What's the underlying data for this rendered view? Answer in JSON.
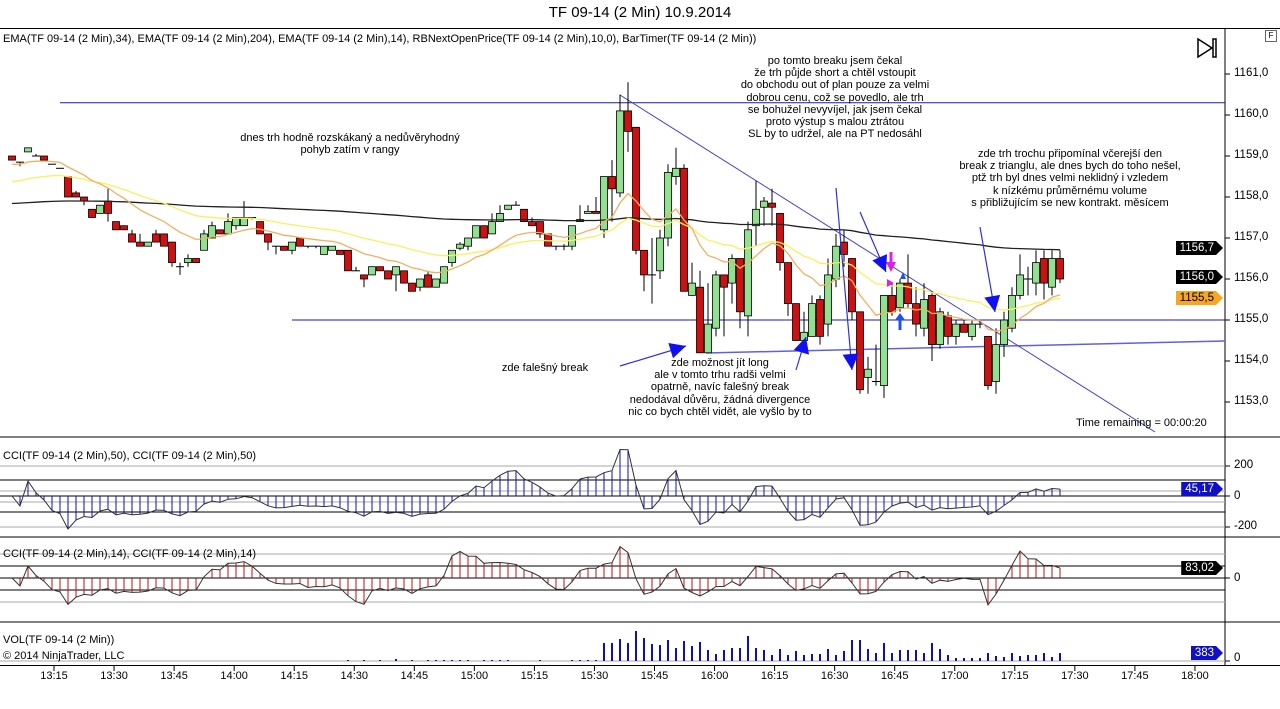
{
  "window": {
    "title": "TF 09-14 (2 Min)  10.9.2014",
    "f_button": "F"
  },
  "main_panel": {
    "indicators_label": "EMA(TF 09-14 (2 Min),34), EMA(TF 09-14 (2 Min),204), EMA(TF 09-14 (2 Min),14), RBNextOpenPrice(TF 09-14 (2 Min),10,0), BarTimer(TF 09-14 (2 Min))",
    "time_remaining": "Time remaining = 00:00:20",
    "price_badges": [
      {
        "label": "1156,7",
        "color": "#000000"
      },
      {
        "label": "1156,0",
        "color": "#000000"
      },
      {
        "label": "1155,5",
        "color": "#f5a623"
      }
    ]
  },
  "annotations": {
    "note1": "dnes trh hodně rozskákaný a nedůvěryhodný\npohyb zatím v rangy",
    "note2": "po tomto breaku jsem čekal\nže trh půjde short a chtěl vstoupit\ndo obchodu out of plan pouze za velmi\ndobrou cenu, což se povedlo, ale trh\nse bohužel nevyvíjel, jak jsem čekal\nproto výstup s malou ztrátou\nSL by to udržel, ale na PT nedosáhl",
    "note3": "zde trh trochu připomínal včerejší den\nbreak z trianglu, ale dnes bych do toho nešel,\nptž trh byl dnes velmi neklidný i vzledem\nk nízkému průměrnému volume\ns přibližujícím se new kontrakt. měsícem",
    "note4": "zde falešný break",
    "note5": "zde možnost jít long\nale v tomto trhu radši velmi\nopatrně, navíc falešný break\nnedodával důvěru, žádná divergence\nnic co bych chtěl vidět, ale vyšlo by to"
  },
  "cci50_panel": {
    "label": "CCI(TF 09-14 (2 Min),50), CCI(TF 09-14 (2 Min),50)",
    "badge": "45,17",
    "axis": [
      "200",
      "0",
      "-200"
    ]
  },
  "cci14_panel": {
    "label": "CCI(TF 09-14 (2 Min),14), CCI(TF 09-14 (2 Min),14)",
    "badge": "83,02",
    "axis": [
      "0"
    ]
  },
  "volume_panel": {
    "label": "VOL(TF 09-14 (2 Min))",
    "copyright": "© 2014 NinjaTrader, LLC",
    "badge": "383",
    "axis": [
      "0"
    ]
  },
  "chart_data": {
    "type": "candlestick",
    "title": "TF 09-14 (2 Min)  10.9.2014",
    "bar_interval_min": 2,
    "ylim": [
      1152.5,
      1161.6
    ],
    "y_ticks": [
      "1161,0",
      "1160,0",
      "1159,0",
      "1158,0",
      "1157,0",
      "1156,0",
      "1155,0",
      "1154,0",
      "1153,0"
    ],
    "x_ticks": [
      "13:15",
      "13:30",
      "13:45",
      "14:00",
      "14:15",
      "14:30",
      "14:45",
      "15:00",
      "15:15",
      "15:30",
      "15:45",
      "16:00",
      "16:15",
      "16:30",
      "16:45",
      "17:00",
      "17:15",
      "17:30",
      "17:45",
      "18:00"
    ],
    "colors": {
      "up": "#90e090",
      "down": "#d01010",
      "ema14": "#f0b060",
      "ema34": "#f8f060",
      "ema204": "#202020",
      "cci50": "#1010b0",
      "cci14": "#c01010",
      "volume": "#1010b0",
      "lines": "#2020a0"
    },
    "ema_start": {
      "ema14": 1158.78,
      "ema34": 1158.34,
      "ema204": 1157.83
    },
    "horizontal_lines": [
      1160.3,
      1155.0
    ],
    "ohlc": [
      [
        1159.0,
        1159.0,
        1158.9,
        1158.9
      ],
      [
        1158.85,
        1158.85,
        1158.75,
        1158.83
      ],
      [
        1159.1,
        1159.2,
        1159.1,
        1159.2
      ],
      [
        1159.0,
        1159.05,
        1159.0,
        1159.0
      ],
      [
        1159.0,
        1159.0,
        1158.9,
        1158.9
      ],
      [
        1158.8,
        1158.8,
        1158.8,
        1158.8
      ],
      [
        1158.7,
        1158.7,
        1158.7,
        1158.7
      ],
      [
        1158.5,
        1158.5,
        1158.0,
        1158.0
      ],
      [
        1158.1,
        1158.15,
        1158.0,
        1158.0
      ],
      [
        1158.0,
        1158.0,
        1157.8,
        1157.9
      ],
      [
        1157.7,
        1157.7,
        1157.5,
        1157.5
      ],
      [
        1157.6,
        1157.8,
        1157.6,
        1157.8
      ],
      [
        1157.9,
        1158.2,
        1157.4,
        1157.6
      ],
      [
        1157.4,
        1157.4,
        1157.2,
        1157.2
      ],
      [
        1157.3,
        1157.3,
        1157.2,
        1157.2
      ],
      [
        1157.1,
        1157.2,
        1156.9,
        1156.9
      ],
      [
        1156.9,
        1157.1,
        1156.8,
        1156.8
      ],
      [
        1156.8,
        1156.9,
        1156.8,
        1156.9
      ],
      [
        1157.1,
        1157.2,
        1156.9,
        1156.9
      ],
      [
        1157.1,
        1157.1,
        1156.8,
        1156.8
      ],
      [
        1156.9,
        1156.9,
        1156.3,
        1156.4
      ],
      [
        1156.3,
        1156.4,
        1156.1,
        1156.3
      ],
      [
        1156.4,
        1156.6,
        1156.3,
        1156.5
      ],
      [
        1156.5,
        1156.5,
        1156.4,
        1156.4
      ],
      [
        1156.7,
        1157.2,
        1156.7,
        1157.1
      ],
      [
        1157.0,
        1157.4,
        1157.0,
        1157.3
      ],
      [
        1157.2,
        1157.2,
        1157.1,
        1157.1
      ],
      [
        1157.1,
        1157.6,
        1157.1,
        1157.4
      ],
      [
        1157.3,
        1157.5,
        1157.2,
        1157.5
      ],
      [
        1157.3,
        1157.9,
        1157.3,
        1157.5
      ],
      [
        1157.5,
        1157.5,
        1157.45,
        1157.5
      ],
      [
        1157.4,
        1157.4,
        1157.1,
        1157.1
      ],
      [
        1157.1,
        1157.1,
        1156.7,
        1156.9
      ],
      [
        1156.8,
        1156.8,
        1156.6,
        1156.8
      ],
      [
        1156.8,
        1156.8,
        1156.7,
        1156.7
      ],
      [
        1156.7,
        1156.9,
        1156.6,
        1156.9
      ],
      [
        1157.0,
        1157.0,
        1156.8,
        1156.8
      ],
      [
        1156.8,
        1156.8,
        1156.75,
        1156.8
      ],
      [
        1156.8,
        1156.8,
        1156.75,
        1156.8
      ],
      [
        1156.6,
        1156.8,
        1156.6,
        1156.8
      ],
      [
        1156.7,
        1156.8,
        1156.7,
        1156.8
      ],
      [
        1156.7,
        1156.7,
        1156.6,
        1156.6
      ],
      [
        1156.7,
        1156.7,
        1156.2,
        1156.2
      ],
      [
        1156.2,
        1156.3,
        1156.2,
        1156.2
      ],
      [
        1156.1,
        1156.1,
        1155.8,
        1156.0
      ],
      [
        1156.1,
        1156.3,
        1156.1,
        1156.3
      ],
      [
        1156.3,
        1156.3,
        1156.2,
        1156.2
      ],
      [
        1156.2,
        1156.2,
        1156.0,
        1156.0
      ],
      [
        1156.1,
        1156.3,
        1155.7,
        1156.3
      ],
      [
        1156.2,
        1156.2,
        1155.9,
        1155.9
      ],
      [
        1155.9,
        1155.9,
        1155.7,
        1155.7
      ],
      [
        1155.8,
        1156.0,
        1155.7,
        1156.0
      ],
      [
        1156.1,
        1156.2,
        1155.8,
        1155.8
      ],
      [
        1155.8,
        1156.0,
        1155.8,
        1156.0
      ],
      [
        1155.9,
        1156.3,
        1155.9,
        1156.3
      ],
      [
        1156.4,
        1156.7,
        1156.3,
        1156.7
      ],
      [
        1156.75,
        1156.9,
        1156.7,
        1156.85
      ],
      [
        1156.8,
        1157.0,
        1156.7,
        1157.0
      ],
      [
        1157.0,
        1157.3,
        1157.0,
        1157.3
      ],
      [
        1157.3,
        1157.3,
        1157.0,
        1157.0
      ],
      [
        1157.1,
        1157.6,
        1157.1,
        1157.4
      ],
      [
        1157.4,
        1157.8,
        1157.4,
        1157.6
      ],
      [
        1157.7,
        1157.8,
        1157.7,
        1157.8
      ],
      [
        1157.8,
        1157.9,
        1157.8,
        1157.8
      ],
      [
        1157.7,
        1157.7,
        1157.4,
        1157.4
      ],
      [
        1157.4,
        1157.5,
        1157.3,
        1157.3
      ],
      [
        1157.4,
        1157.4,
        1157.0,
        1157.1
      ],
      [
        1157.1,
        1157.1,
        1156.8,
        1156.8
      ],
      [
        1156.8,
        1156.8,
        1156.7,
        1156.8
      ],
      [
        1156.8,
        1156.85,
        1156.7,
        1156.8
      ],
      [
        1156.8,
        1157.3,
        1156.7,
        1157.3
      ],
      [
        1157.4,
        1157.8,
        1157.4,
        1157.45
      ],
      [
        1157.6,
        1157.8,
        1157.6,
        1157.65
      ],
      [
        1157.65,
        1158.0,
        1157.6,
        1157.6
      ],
      [
        1157.2,
        1158.5,
        1157.0,
        1158.5
      ],
      [
        1158.5,
        1158.9,
        1157.4,
        1158.2
      ],
      [
        1158.1,
        1160.5,
        1158.0,
        1160.1
      ],
      [
        1160.1,
        1160.8,
        1159.1,
        1159.6
      ],
      [
        1159.7,
        1159.7,
        1156.6,
        1156.7
      ],
      [
        1156.7,
        1156.7,
        1155.7,
        1156.1
      ],
      [
        1156.1,
        1157.0,
        1155.4,
        1156.1
      ],
      [
        1156.2,
        1157.2,
        1156.0,
        1157.0
      ],
      [
        1157.0,
        1158.8,
        1156.8,
        1158.6
      ],
      [
        1158.5,
        1159.2,
        1158.3,
        1158.7
      ],
      [
        1158.7,
        1158.8,
        1155.7,
        1155.7
      ],
      [
        1155.6,
        1156.4,
        1155.6,
        1155.9
      ],
      [
        1155.8,
        1156.2,
        1154.2,
        1154.2
      ],
      [
        1154.2,
        1155.9,
        1154.2,
        1154.9
      ],
      [
        1154.8,
        1156.2,
        1154.6,
        1156.1
      ],
      [
        1156.1,
        1156.1,
        1154.6,
        1155.8
      ],
      [
        1155.9,
        1156.6,
        1155.4,
        1156.5
      ],
      [
        1156.5,
        1156.5,
        1154.8,
        1155.2
      ],
      [
        1155.1,
        1157.4,
        1154.6,
        1157.2
      ],
      [
        1157.3,
        1158.4,
        1156.8,
        1157.7
      ],
      [
        1157.75,
        1158.0,
        1157.3,
        1157.9
      ],
      [
        1157.85,
        1158.2,
        1157.3,
        1157.75
      ],
      [
        1157.6,
        1157.6,
        1156.2,
        1156.4
      ],
      [
        1156.4,
        1156.4,
        1155.1,
        1155.4
      ],
      [
        1155.4,
        1155.4,
        1154.5,
        1154.5
      ],
      [
        1154.5,
        1155.2,
        1154.4,
        1154.7
      ],
      [
        1154.6,
        1155.6,
        1154.6,
        1155.4
      ],
      [
        1155.5,
        1155.6,
        1154.4,
        1154.6
      ],
      [
        1154.9,
        1156.5,
        1154.6,
        1156.1
      ],
      [
        1156.0,
        1157.1,
        1155.8,
        1156.8
      ],
      [
        1156.9,
        1157.2,
        1156.3,
        1156.6
      ],
      [
        1156.5,
        1156.5,
        1155.0,
        1155.2
      ],
      [
        1155.2,
        1155.2,
        1153.2,
        1153.3
      ],
      [
        1153.6,
        1154.1,
        1153.2,
        1153.8
      ],
      [
        1153.5,
        1154.4,
        1153.4,
        1153.5
      ],
      [
        1153.4,
        1155.6,
        1153.1,
        1155.6
      ],
      [
        1155.6,
        1155.9,
        1155.1,
        1155.2
      ],
      [
        1155.3,
        1156.0,
        1155.2,
        1155.9
      ],
      [
        1155.9,
        1156.6,
        1155.3,
        1155.4
      ],
      [
        1155.4,
        1155.8,
        1154.6,
        1154.9
      ],
      [
        1154.8,
        1155.9,
        1154.6,
        1155.5
      ],
      [
        1155.6,
        1155.7,
        1154.0,
        1154.4
      ],
      [
        1154.4,
        1155.3,
        1154.3,
        1155.2
      ],
      [
        1155.1,
        1155.2,
        1154.4,
        1154.6
      ],
      [
        1154.6,
        1155.0,
        1154.4,
        1154.9
      ],
      [
        1154.9,
        1155.0,
        1154.7,
        1154.7
      ],
      [
        1154.6,
        1155.0,
        1154.5,
        1154.9
      ],
      [
        1154.9,
        1155.0,
        1154.8,
        1154.9
      ],
      [
        1154.6,
        1154.6,
        1153.3,
        1153.4
      ],
      [
        1153.5,
        1154.8,
        1153.2,
        1154.4
      ],
      [
        1154.4,
        1155.2,
        1154.1,
        1155.0
      ],
      [
        1154.8,
        1155.8,
        1154.7,
        1155.6
      ],
      [
        1155.6,
        1156.6,
        1155.5,
        1156.1
      ],
      [
        1156.0,
        1156.3,
        1155.6,
        1156.0
      ],
      [
        1155.9,
        1156.7,
        1155.6,
        1156.4
      ],
      [
        1156.5,
        1156.7,
        1155.5,
        1155.9
      ],
      [
        1155.8,
        1156.7,
        1155.6,
        1156.5
      ],
      [
        1156.5,
        1156.7,
        1155.9,
        1156.0
      ]
    ],
    "volume": [
      0,
      0,
      0,
      0,
      0,
      0,
      0,
      0,
      0,
      0,
      0,
      0,
      0,
      0,
      0,
      0,
      0,
      0,
      0,
      0,
      0,
      0,
      0,
      0,
      0,
      0,
      0,
      0,
      0,
      0,
      0,
      0,
      0,
      0,
      0,
      0,
      0,
      0,
      0,
      0,
      0,
      0,
      48,
      0,
      48,
      0,
      48,
      0,
      96,
      0,
      48,
      0,
      48,
      48,
      48,
      48,
      48,
      48,
      0,
      48,
      48,
      48,
      48,
      0,
      0,
      0,
      48,
      0,
      0,
      0,
      48,
      48,
      48,
      48,
      864,
      864,
      1056,
      864,
      1440,
      1104,
      816,
      768,
      1008,
      624,
      960,
      720,
      912,
      528,
      336,
      528,
      624,
      624,
      1200,
      624,
      528,
      288,
      576,
      288,
      480,
      288,
      336,
      336,
      576,
      288,
      480,
      1008,
      1008,
      576,
      384,
      864,
      384,
      528,
      528,
      528,
      384,
      864,
      576,
      288,
      144,
      144,
      144,
      144,
      384,
      240,
      192,
      384,
      240,
      288,
      288,
      384,
      192,
      383
    ]
  }
}
